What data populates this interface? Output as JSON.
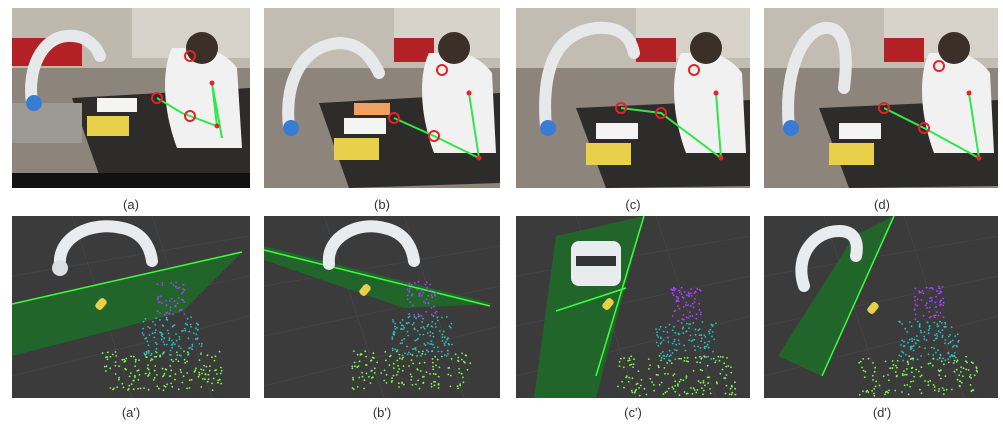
{
  "figure": {
    "top_row_captions": [
      "(a)",
      "(b)",
      "(c)",
      "(d)"
    ],
    "bottom_row_captions": [
      "(a')",
      "(b')",
      "(c')",
      "(d')"
    ],
    "colors": {
      "skeleton": "#2ee84a",
      "joint_marker": "#e8202a",
      "plane": "#1f6a2a",
      "plane_edge": "#3cff3c",
      "rviz_background": "#3b3b3b",
      "robot": "#e9ecef",
      "point_cloud_low": "#7cff4a",
      "point_cloud_mid": "#27c2c2",
      "point_cloud_high": "#b040ff"
    }
  }
}
